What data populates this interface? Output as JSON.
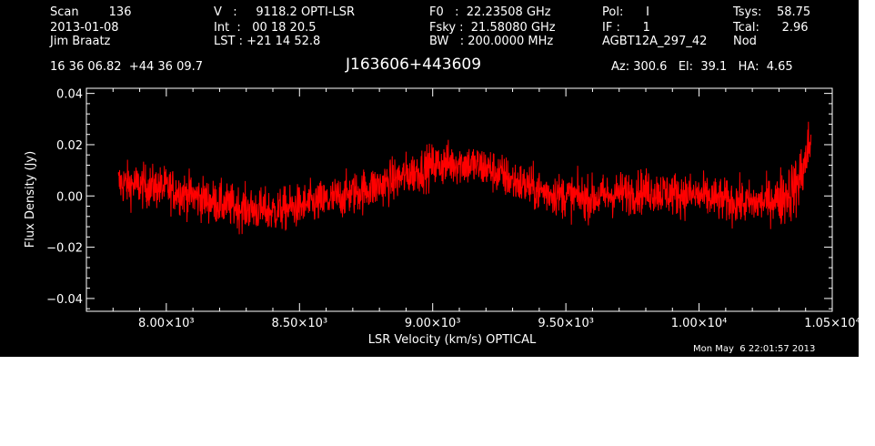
{
  "header": {
    "col1": [
      "Scan        136",
      "2013-01-08",
      "Jim Braatz"
    ],
    "col2": [
      "V   :     9118.2 OPTI-LSR",
      "Int  :   00 18 20.5",
      "LST : +21 14 52.8"
    ],
    "col3": [
      "F0   :  22.23508 GHz",
      "Fsky :  21.58080 GHz",
      "BW   : 200.0000 MHz"
    ],
    "col4": [
      "Pol:      I",
      "IF :      1",
      "AGBT12A_297_42"
    ],
    "col5": [
      "Tsys:    58.75",
      "Tcal:      2.96",
      "Nod"
    ],
    "coords": "16 36 06.82  +44 36 09.7",
    "source": "J163606+443609",
    "pointing": "Az: 300.6   El:  39.1   HA:  4.65",
    "timestamp": "Mon May  6 22:01:57 2013"
  },
  "chart_data": {
    "type": "line",
    "xlabel": "LSR Velocity (km/s) OPTICAL",
    "ylabel": "Flux Density (Jy)",
    "xlim": [
      7700,
      10500
    ],
    "ylim": [
      -0.045,
      0.042
    ],
    "x_ticks": [
      {
        "value": 8000,
        "label": "8.00×10³"
      },
      {
        "value": 8500,
        "label": "8.50×10³"
      },
      {
        "value": 9000,
        "label": "9.00×10³"
      },
      {
        "value": 9500,
        "label": "9.50×10³"
      },
      {
        "value": 10000,
        "label": "1.00×10⁴"
      },
      {
        "value": 10500,
        "label": "1.05×10⁴"
      }
    ],
    "y_ticks": [
      {
        "value": -0.04,
        "label": "−0.04"
      },
      {
        "value": -0.02,
        "label": "−0.02"
      },
      {
        "value": 0.0,
        "label": "0.00"
      },
      {
        "value": 0.02,
        "label": "0.02"
      },
      {
        "value": 0.04,
        "label": "0.04"
      }
    ],
    "series": [
      {
        "color": "#ff0000",
        "noise_amplitude": 0.006,
        "x": [
          7820,
          7900,
          8000,
          8100,
          8200,
          8300,
          8400,
          8500,
          8600,
          8700,
          8800,
          8900,
          9000,
          9100,
          9200,
          9300,
          9400,
          9500,
          9600,
          9700,
          9800,
          9900,
          10000,
          10100,
          10200,
          10300,
          10360,
          10390,
          10420
        ],
        "y": [
          0.005,
          0.004,
          0.003,
          0.0,
          -0.003,
          -0.005,
          -0.006,
          -0.004,
          -0.002,
          0.001,
          0.004,
          0.008,
          0.012,
          0.013,
          0.011,
          0.006,
          0.002,
          0.0,
          -0.001,
          0.001,
          0.002,
          0.001,
          0.0,
          -0.002,
          -0.003,
          -0.001,
          0.003,
          0.01,
          0.022
        ]
      }
    ]
  }
}
